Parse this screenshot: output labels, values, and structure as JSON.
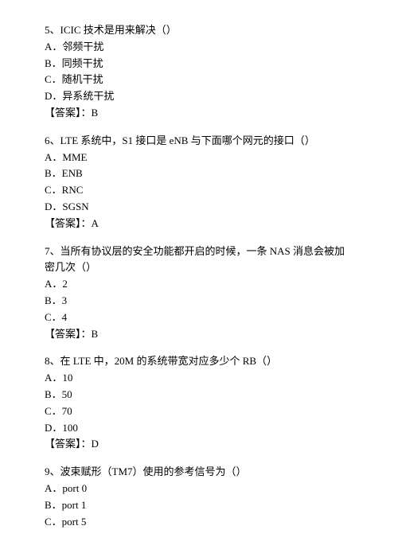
{
  "questions": [
    {
      "prompt": "5、ICIC 技术是用来解决（）",
      "options": [
        "A．邻频干扰",
        "B．同频干扰",
        "C．随机干扰",
        "D．异系统干扰"
      ],
      "answer": "【答案】：B"
    },
    {
      "prompt": "6、LTE 系统中，S1 接口是 eNB 与下面哪个网元的接口（）",
      "options": [
        "A．MME",
        "B．ENB",
        "C．RNC",
        "D．SGSN"
      ],
      "answer": "【答案】：A"
    },
    {
      "prompt": "7、当所有协议层的安全功能都开启的时候，一条 NAS 消息会被加密几次（）",
      "options": [
        "A．2",
        "B．3",
        "C．4"
      ],
      "answer": "【答案】：B"
    },
    {
      "prompt": "8、在 LTE 中，20M 的系统带宽对应多少个 RB（）",
      "options": [
        "A．10",
        "B．50",
        "C．70",
        "D．100"
      ],
      "answer": "【答案】：D"
    },
    {
      "prompt": "9、波束赋形（TM7）使用的参考信号为（）",
      "options": [
        "A．port 0",
        "B．port 1",
        "C．port 5"
      ],
      "answer": ""
    }
  ]
}
